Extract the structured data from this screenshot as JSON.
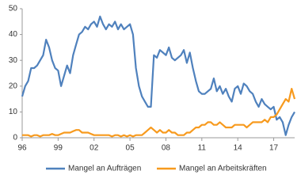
{
  "chart_data": {
    "type": "line",
    "x": [
      1996,
      1996.25,
      1996.5,
      1996.75,
      1997,
      1997.25,
      1997.5,
      1997.75,
      1998,
      1998.25,
      1998.5,
      1998.75,
      1999,
      1999.25,
      1999.5,
      1999.75,
      2000,
      2000.25,
      2000.5,
      2000.75,
      2001,
      2001.25,
      2001.5,
      2001.75,
      2002,
      2002.25,
      2002.5,
      2002.75,
      2003,
      2003.25,
      2003.5,
      2003.75,
      2004,
      2004.25,
      2004.5,
      2004.75,
      2005,
      2005.25,
      2005.5,
      2005.75,
      2006,
      2006.25,
      2006.5,
      2006.75,
      2007,
      2007.25,
      2007.5,
      2007.75,
      2008,
      2008.25,
      2008.5,
      2008.75,
      2009,
      2009.25,
      2009.5,
      2009.75,
      2010,
      2010.25,
      2010.5,
      2010.75,
      2011,
      2011.25,
      2011.5,
      2011.75,
      2012,
      2012.25,
      2012.5,
      2012.75,
      2013,
      2013.25,
      2013.5,
      2013.75,
      2014,
      2014.25,
      2014.5,
      2014.75,
      2015,
      2015.25,
      2015.5,
      2015.75,
      2016,
      2016.25,
      2016.5,
      2016.75,
      2017,
      2017.25,
      2017.5,
      2017.75,
      2018,
      2018.25,
      2018.5,
      2018.75
    ],
    "series": [
      {
        "name": "Mangel an Aufträgen",
        "color": "#4f81bd",
        "values": [
          16,
          20,
          22,
          27,
          27,
          28,
          30,
          32,
          38,
          35,
          30,
          27,
          26,
          20,
          24,
          28,
          25,
          32,
          36,
          40,
          41,
          43,
          42,
          44,
          45,
          43,
          47,
          44,
          42,
          44,
          43,
          45,
          42,
          44,
          42,
          43,
          44,
          40,
          27,
          20,
          16,
          14,
          12,
          12,
          32,
          31,
          34,
          33,
          32,
          35,
          31,
          30,
          31,
          32,
          34,
          29,
          33,
          27,
          22,
          18,
          17,
          17,
          18,
          19,
          23,
          18,
          20,
          17,
          19,
          16,
          14,
          19,
          20,
          17,
          21,
          20,
          18,
          17,
          14,
          12,
          15,
          13,
          12,
          11,
          12,
          7,
          8,
          6,
          1,
          5,
          8,
          10
        ]
      },
      {
        "name": "Mangel an Arbeitskräften",
        "color": "#f79a1e",
        "values": [
          1,
          1,
          1,
          0.5,
          1,
          1,
          0.5,
          1,
          1,
          1,
          1.5,
          1,
          1,
          1.5,
          2,
          2,
          2,
          2.5,
          3,
          3,
          2,
          2,
          2,
          1.5,
          1,
          1,
          1,
          1,
          1,
          1,
          0.5,
          1,
          1,
          0.5,
          1,
          0.5,
          1,
          0.5,
          1,
          1,
          1,
          2,
          3,
          4,
          3,
          2,
          3,
          2,
          2,
          3,
          2,
          2,
          1,
          1,
          1,
          2,
          2,
          3,
          4,
          4,
          5,
          5,
          6,
          6,
          5,
          5,
          6,
          5,
          4,
          4,
          4,
          5,
          5,
          5,
          5,
          4,
          5,
          6,
          6,
          6,
          6,
          7,
          6,
          8,
          8,
          9,
          11,
          13,
          15,
          14,
          19,
          15
        ]
      }
    ],
    "xlim": [
      1996,
      2018.75
    ],
    "xticks": [
      {
        "value": 1996,
        "label": "96"
      },
      {
        "value": 1999,
        "label": "99"
      },
      {
        "value": 2002,
        "label": "02"
      },
      {
        "value": 2005,
        "label": "05"
      },
      {
        "value": 2008,
        "label": "08"
      },
      {
        "value": 2011,
        "label": "11"
      },
      {
        "value": 2014,
        "label": "14"
      },
      {
        "value": 2017,
        "label": "17"
      }
    ],
    "ylim": [
      0,
      50
    ],
    "yticks": [
      0,
      10,
      20,
      30,
      40,
      50
    ],
    "grid": false
  }
}
